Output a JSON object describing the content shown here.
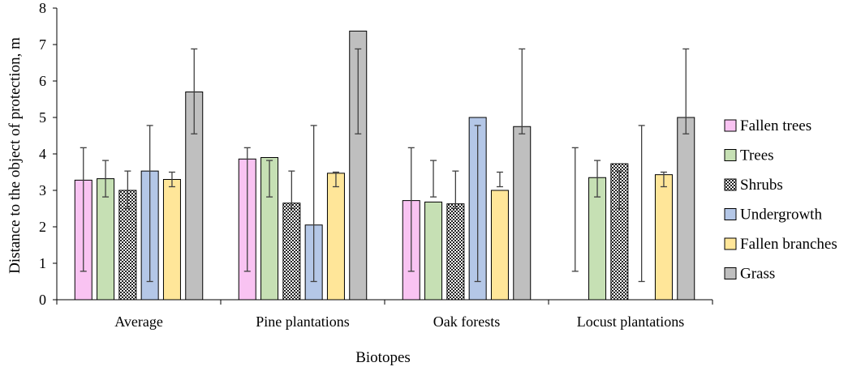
{
  "chart_data": {
    "type": "bar",
    "title": "",
    "xlabel": "Biotopes",
    "ylabel": "Distance to the object of protection, m",
    "ylim": [
      0,
      8
    ],
    "yticks": [
      "0",
      "1",
      "2",
      "3",
      "4",
      "5",
      "6",
      "7",
      "8"
    ],
    "grid": false,
    "legend_position": "right",
    "categories": [
      "Average",
      "Pine plantations",
      "Oak forests",
      "Locust plantations"
    ],
    "series": [
      {
        "name": "Fallen trees",
        "color": "#F9C3F2",
        "pattern": "solid",
        "values": [
          3.28,
          3.86,
          2.72,
          null
        ],
        "error_low": [
          0.78,
          0.78,
          0.78,
          0.78
        ],
        "error_high": [
          4.17,
          4.17,
          4.17,
          4.17
        ]
      },
      {
        "name": "Trees",
        "color": "#C6E0B4",
        "pattern": "solid",
        "values": [
          3.32,
          3.9,
          2.68,
          3.35
        ],
        "error_low": [
          2.82,
          2.82,
          2.82,
          2.82
        ],
        "error_high": [
          3.82,
          3.82,
          3.82,
          3.82
        ]
      },
      {
        "name": "Shrubs",
        "color": "#FFFFFF",
        "pattern": "dots",
        "values": [
          3.0,
          2.65,
          2.63,
          3.73
        ],
        "error_low": [
          2.5,
          2.5,
          2.5,
          2.5
        ],
        "error_high": [
          3.53,
          3.53,
          3.53,
          3.53
        ]
      },
      {
        "name": "Undergrowth",
        "color": "#B4C7E7",
        "pattern": "solid",
        "values": [
          3.53,
          2.05,
          5.0,
          null
        ],
        "error_low": [
          0.5,
          0.5,
          0.5,
          0.5
        ],
        "error_high": [
          4.78,
          4.78,
          4.78,
          4.78
        ]
      },
      {
        "name": "Fallen branches",
        "color": "#FFE699",
        "pattern": "solid",
        "values": [
          3.3,
          3.47,
          3.0,
          3.43
        ],
        "error_low": [
          3.1,
          3.1,
          3.1,
          3.1
        ],
        "error_high": [
          3.5,
          3.5,
          3.5,
          3.5
        ]
      },
      {
        "name": "Grass",
        "color": "#BFBFBF",
        "pattern": "solid",
        "values": [
          5.7,
          7.37,
          4.75,
          5.0
        ],
        "error_low": [
          4.55,
          4.55,
          4.55,
          4.55
        ],
        "error_high": [
          6.88,
          6.88,
          6.88,
          6.88
        ]
      }
    ]
  }
}
